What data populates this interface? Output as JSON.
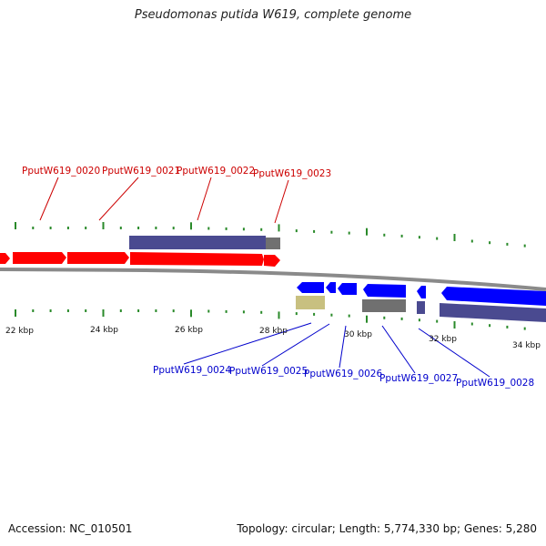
{
  "title": "Pseudomonas putida W619, complete genome",
  "footer": {
    "accession": "Accession: NC_010501",
    "summary": "Topology: circular; Length: 5,774,330 bp; Genes: 5,280"
  },
  "colors": {
    "forward_gene": "#ff0000",
    "reverse_gene": "#0000ff",
    "purple_block": "#4a4a90",
    "gray_block": "#707070",
    "olive_block": "#c8c080",
    "tick": "#2a8a2a",
    "backbone": "#8a8a8a",
    "label_top": "#cc0000",
    "label_bottom": "#0000cc"
  },
  "kbp_labels": [
    "22 kbp",
    "24 kbp",
    "26 kbp",
    "28 kbp",
    "30 kbp",
    "32 kbp",
    "34 kbp"
  ],
  "top_labels": [
    "PputW619_0020",
    "PputW619_0021",
    "PputW619_0022",
    "PputW619_0023"
  ],
  "bottom_labels": [
    "PputW619_0024",
    "PputW619_0025",
    "PputW619_0026",
    "PputW619_0027",
    "PputW619_0028"
  ]
}
